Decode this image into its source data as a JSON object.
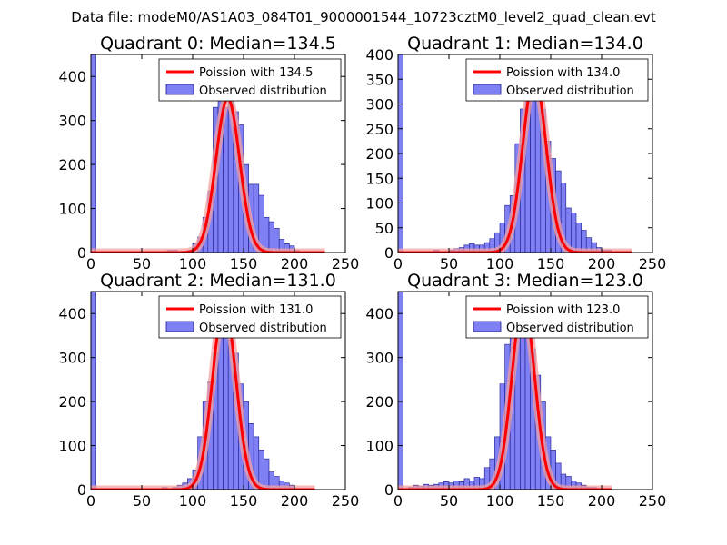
{
  "page": {
    "suptitle": "Data file: modeM0/AS1A03_084T01_9000001544_10723cztM0_level2_quad_clean.evt"
  },
  "colors": {
    "bar_fill": "#8080f5",
    "bar_edge": "#1a1a8c",
    "poisson_line": "#ff0000",
    "poisson_band": "#f4a0a0"
  },
  "chart_data": [
    {
      "type": "bar",
      "title": "Quadrant 0: Median=134.5",
      "legend": [
        "Poission with 134.5",
        "Observed distribution"
      ],
      "legend_position": "top-right",
      "xlim": [
        0,
        250
      ],
      "ylim": [
        0,
        450
      ],
      "xticks": [
        0,
        50,
        100,
        150,
        200,
        250
      ],
      "yticks": [
        0,
        100,
        200,
        300,
        400
      ],
      "bin_width": 5,
      "bin_left_edges": [
        0,
        75,
        80,
        95,
        100,
        105,
        110,
        115,
        120,
        125,
        130,
        135,
        140,
        145,
        150,
        155,
        160,
        165,
        170,
        175,
        180,
        185,
        190,
        195,
        200
      ],
      "counts": [
        450,
        5,
        5,
        5,
        20,
        35,
        80,
        140,
        330,
        350,
        330,
        350,
        320,
        290,
        200,
        155,
        155,
        130,
        80,
        70,
        55,
        30,
        20,
        15,
        5
      ],
      "poisson_mean": 134.5,
      "poisson_peak": 350,
      "poisson_x_range": [
        0,
        230
      ]
    },
    {
      "type": "bar",
      "title": "Quadrant 1: Median=134.0",
      "legend": [
        "Poission with 134.0",
        "Observed distribution"
      ],
      "legend_position": "top-right",
      "xlim": [
        0,
        250
      ],
      "ylim": [
        0,
        400
      ],
      "xticks": [
        0,
        50,
        100,
        150,
        200,
        250
      ],
      "yticks": [
        0,
        50,
        100,
        150,
        200,
        250,
        300,
        350,
        400
      ],
      "bin_width": 5,
      "bin_left_edges": [
        0,
        35,
        50,
        55,
        60,
        65,
        70,
        75,
        80,
        85,
        90,
        95,
        100,
        105,
        110,
        115,
        120,
        125,
        130,
        135,
        140,
        145,
        150,
        155,
        160,
        165,
        170,
        175,
        180,
        185,
        190,
        195,
        200,
        205
      ],
      "counts": [
        400,
        5,
        5,
        8,
        10,
        15,
        18,
        15,
        15,
        20,
        28,
        40,
        60,
        95,
        115,
        220,
        290,
        325,
        355,
        310,
        290,
        225,
        190,
        165,
        140,
        90,
        80,
        60,
        45,
        30,
        20,
        10,
        5,
        5
      ],
      "poisson_mean": 134.0,
      "poisson_peak": 355,
      "poisson_x_range": [
        0,
        230
      ]
    },
    {
      "type": "bar",
      "title": "Quadrant 2: Median=131.0",
      "legend": [
        "Poission with 131.0",
        "Observed distribution"
      ],
      "legend_position": "top-right",
      "xlim": [
        0,
        250
      ],
      "ylim": [
        0,
        450
      ],
      "xticks": [
        0,
        50,
        100,
        150,
        200,
        250
      ],
      "yticks": [
        0,
        100,
        200,
        300,
        400
      ],
      "bin_width": 5,
      "bin_left_edges": [
        0,
        70,
        80,
        85,
        90,
        95,
        100,
        105,
        110,
        115,
        120,
        125,
        130,
        135,
        140,
        145,
        150,
        155,
        160,
        165,
        170,
        175,
        180,
        185,
        190,
        195
      ],
      "counts": [
        450,
        5,
        5,
        10,
        15,
        25,
        45,
        120,
        200,
        245,
        310,
        370,
        350,
        340,
        310,
        240,
        200,
        150,
        120,
        90,
        70,
        40,
        30,
        20,
        15,
        10
      ],
      "poisson_mean": 131.0,
      "poisson_peak": 420,
      "poisson_x_range": [
        0,
        220
      ]
    },
    {
      "type": "bar",
      "title": "Quadrant 3: Median=123.0",
      "legend": [
        "Poission with 123.0",
        "Observed distribution"
      ],
      "legend_position": "top-right",
      "xlim": [
        0,
        250
      ],
      "ylim": [
        0,
        450
      ],
      "xticks": [
        0,
        50,
        100,
        150,
        200,
        250
      ],
      "yticks": [
        0,
        100,
        200,
        300,
        400
      ],
      "bin_width": 5,
      "bin_left_edges": [
        0,
        10,
        15,
        20,
        25,
        30,
        35,
        40,
        45,
        50,
        55,
        60,
        65,
        70,
        75,
        80,
        85,
        90,
        95,
        100,
        105,
        110,
        115,
        120,
        125,
        130,
        135,
        140,
        145,
        150,
        155,
        160,
        165,
        170,
        175,
        180,
        185,
        190
      ],
      "counts": [
        450,
        5,
        10,
        8,
        12,
        10,
        12,
        15,
        18,
        15,
        20,
        18,
        25,
        20,
        28,
        25,
        50,
        70,
        120,
        240,
        330,
        380,
        410,
        400,
        380,
        320,
        260,
        200,
        120,
        90,
        60,
        35,
        30,
        20,
        15,
        10,
        5,
        5
      ],
      "poisson_mean": 123.0,
      "poisson_peak": 430,
      "poisson_x_range": [
        0,
        210
      ]
    }
  ]
}
